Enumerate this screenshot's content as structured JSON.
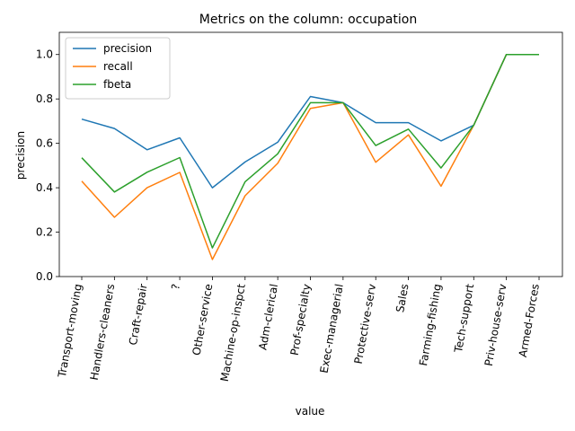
{
  "chart_data": {
    "type": "line",
    "title": "Metrics on the column: occupation",
    "xlabel": "value",
    "ylabel": "precision",
    "ylim": [
      0,
      1.1
    ],
    "yticks": [
      "0.0",
      "0.2",
      "0.4",
      "0.6",
      "0.8",
      "1.0"
    ],
    "legend_position": "upper-left",
    "categories": [
      "Transport-moving",
      "Handlers-cleaners",
      "Craft-repair",
      "?",
      "Other-service",
      "Machine-op-inspct",
      "Adm-clerical",
      "Prof-specialty",
      "Exec-managerial",
      "Protective-serv",
      "Sales",
      "Farming-fishing",
      "Tech-support",
      "Priv-house-serv",
      "Armed-Forces"
    ],
    "series": [
      {
        "name": "precision",
        "color": "#1f77b4",
        "values": [
          0.709,
          0.667,
          0.571,
          0.625,
          0.4,
          0.516,
          0.605,
          0.811,
          0.783,
          0.693,
          0.693,
          0.611,
          0.682,
          1.0,
          1.0
        ]
      },
      {
        "name": "recall",
        "color": "#ff7f0e",
        "values": [
          0.43,
          0.267,
          0.4,
          0.469,
          0.077,
          0.364,
          0.51,
          0.757,
          0.783,
          0.515,
          0.638,
          0.407,
          0.682,
          1.0,
          1.0
        ]
      },
      {
        "name": "fbeta",
        "color": "#2ca02c",
        "values": [
          0.535,
          0.381,
          0.47,
          0.536,
          0.129,
          0.427,
          0.553,
          0.783,
          0.783,
          0.59,
          0.664,
          0.489,
          0.682,
          1.0,
          1.0
        ]
      }
    ]
  }
}
